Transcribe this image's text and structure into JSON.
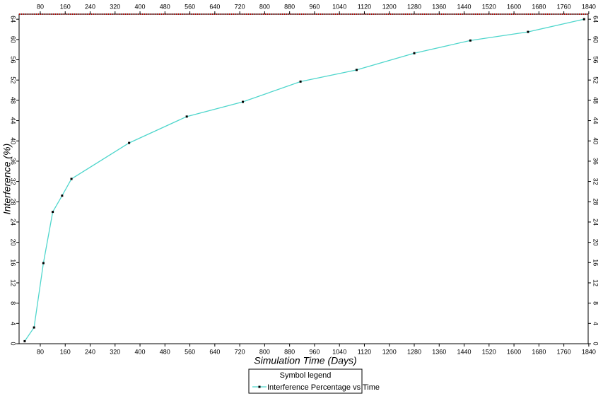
{
  "chart_data": {
    "type": "line",
    "x_label": "Simulation Time (Days)",
    "y_label": "Interference (%)",
    "legend_title": "Symbol legend",
    "x": [
      30,
      60,
      90,
      120,
      150,
      180,
      365,
      550,
      730,
      915,
      1095,
      1280,
      1460,
      1645,
      1825
    ],
    "series": [
      {
        "name": "Interference Percentage vs Time",
        "color": "#4fd6cc",
        "values": [
          0.5,
          3.2,
          15.9,
          26,
          29.2,
          32.5,
          39.6,
          44.8,
          47.7,
          51.7,
          54,
          57.3,
          59.8,
          61.5,
          64
        ]
      }
    ],
    "xlim": [
      12,
      1838
    ],
    "ylim": [
      0,
      65
    ],
    "xticks": [
      80,
      160,
      240,
      320,
      400,
      480,
      560,
      640,
      720,
      800,
      880,
      960,
      1040,
      1120,
      1200,
      1280,
      1360,
      1440,
      1520,
      1600,
      1680,
      1760,
      1840
    ],
    "yticks": [
      0,
      4,
      8,
      12,
      16,
      20,
      24,
      28,
      32,
      36,
      40,
      44,
      48,
      52,
      56,
      60,
      64
    ],
    "grid": false
  }
}
